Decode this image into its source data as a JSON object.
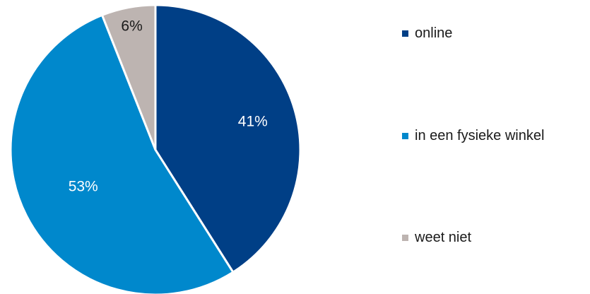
{
  "chart_data": {
    "type": "pie",
    "categories": [
      "online",
      "in een fysieke winkel",
      "weet niet"
    ],
    "values": [
      41,
      53,
      6
    ],
    "data_labels": [
      "41%",
      "53%",
      "6%"
    ],
    "colors": [
      "#003f86",
      "#0088cc",
      "#bdb4b1"
    ],
    "label_colors": [
      "#ffffff",
      "#ffffff",
      "#1a1a1a"
    ],
    "start_angle": "12 o'clock",
    "direction": "clockwise",
    "legend": {
      "position": "right",
      "entries": [
        "online",
        "in een fysieke winkel",
        "weet niet"
      ]
    },
    "title": ""
  }
}
